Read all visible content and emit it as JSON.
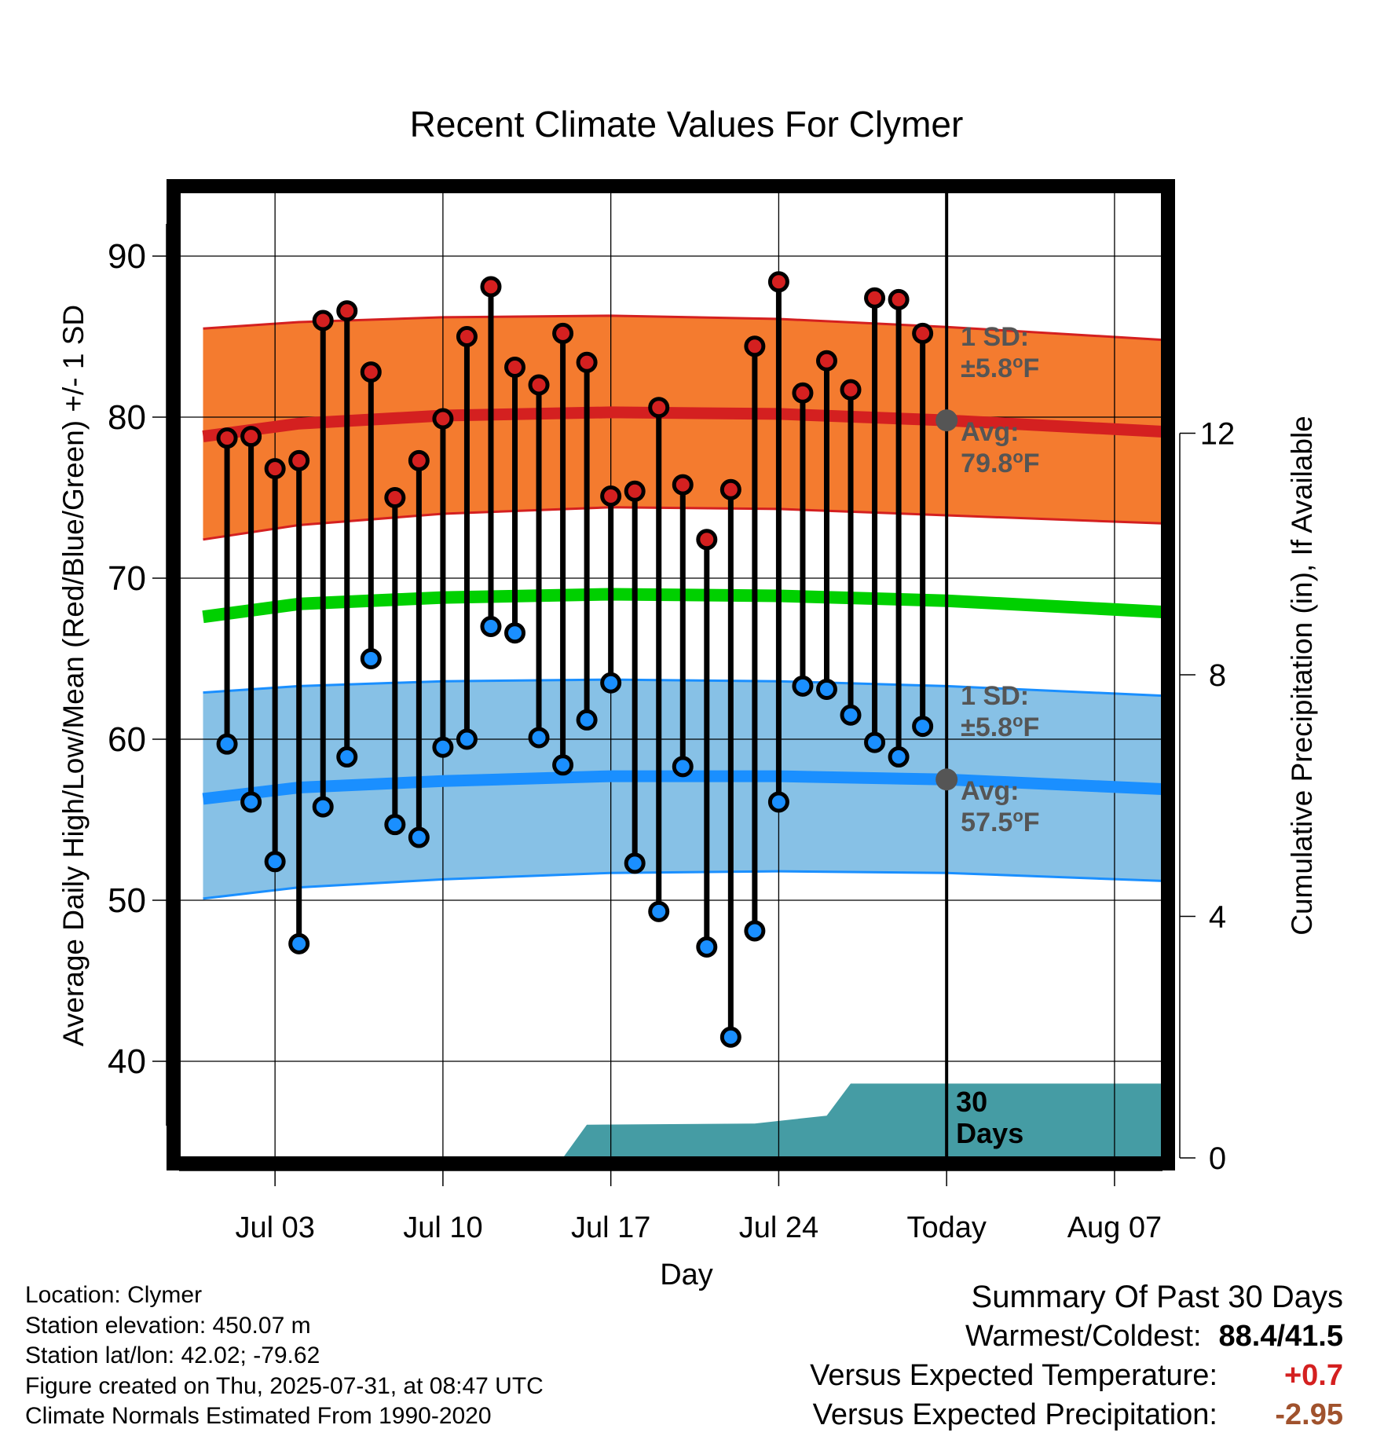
{
  "chart_data": {
    "type": "line",
    "title": "Recent Climate Values For Clymer",
    "xlabel": "Day",
    "ylabel": "Average Daily High/Low/Mean (Red/Blue/Green) +/- 1 SD",
    "y2label": "Cumulative Precipitation (in), If Available",
    "ylim": [
      34,
      94
    ],
    "y2lim": [
      0,
      16
    ],
    "yticks": [
      "40",
      "50",
      "60",
      "70",
      "80",
      "90"
    ],
    "y2ticks": [
      "0",
      "4",
      "8",
      "12"
    ],
    "xticks": [
      "Jul 03",
      "Jul 10",
      "Jul 17",
      "Jul 24",
      "Today",
      "Aug 07"
    ],
    "x_range": [
      "Jun 29",
      "Aug 09"
    ],
    "grid": true,
    "today": "Jul 31",
    "dates": [
      "Jul 01",
      "Jul 02",
      "Jul 03",
      "Jul 04",
      "Jul 05",
      "Jul 06",
      "Jul 07",
      "Jul 08",
      "Jul 09",
      "Jul 10",
      "Jul 11",
      "Jul 12",
      "Jul 13",
      "Jul 14",
      "Jul 15",
      "Jul 16",
      "Jul 17",
      "Jul 18",
      "Jul 19",
      "Jul 20",
      "Jul 21",
      "Jul 22",
      "Jul 23",
      "Jul 24",
      "Jul 25",
      "Jul 26",
      "Jul 27",
      "Jul 28",
      "Jul 29",
      "Jul 30"
    ],
    "series": [
      {
        "name": "High",
        "color": "#d42020",
        "values": [
          78.7,
          78.8,
          76.8,
          77.3,
          86.0,
          86.6,
          82.8,
          75.0,
          77.3,
          79.9,
          85.0,
          88.1,
          83.1,
          82.0,
          85.2,
          83.4,
          75.1,
          75.4,
          80.6,
          75.8,
          72.4,
          75.5,
          84.4,
          88.4,
          81.5,
          83.5,
          81.7,
          87.4,
          87.3,
          85.2
        ]
      },
      {
        "name": "Low",
        "color": "#1a8fff",
        "values": [
          59.7,
          56.1,
          52.4,
          47.3,
          55.8,
          58.9,
          65.0,
          54.7,
          53.9,
          59.5,
          60.0,
          67.0,
          66.6,
          60.1,
          58.4,
          61.2,
          63.5,
          52.3,
          49.3,
          58.3,
          47.1,
          41.5,
          48.1,
          56.1,
          63.3,
          63.1,
          61.5,
          59.8,
          58.9,
          60.8
        ]
      }
    ],
    "normals": {
      "dates": [
        "Jun 30",
        "Jul 04",
        "Jul 10",
        "Jul 17",
        "Jul 24",
        "Jul 31",
        "Aug 09"
      ],
      "avg_high": [
        78.8,
        79.6,
        80.1,
        80.3,
        80.2,
        79.8,
        79.1
      ],
      "high_sd_upper": [
        85.5,
        85.9,
        86.2,
        86.3,
        86.1,
        85.6,
        84.8
      ],
      "high_sd_lower": [
        72.4,
        73.3,
        74.0,
        74.4,
        74.3,
        73.9,
        73.4
      ],
      "avg_mean": [
        67.6,
        68.4,
        68.8,
        69.0,
        68.9,
        68.6,
        67.9
      ],
      "avg_low": [
        56.3,
        57.0,
        57.4,
        57.7,
        57.7,
        57.5,
        56.9
      ],
      "low_sd_upper": [
        62.9,
        63.3,
        63.6,
        63.7,
        63.6,
        63.3,
        62.7
      ],
      "low_sd_lower": [
        50.1,
        50.8,
        51.3,
        51.7,
        51.8,
        51.7,
        51.2
      ]
    },
    "precipitation": {
      "color": "#459ca4",
      "dates": [
        "Jul 15",
        "Jul 16",
        "Jul 23",
        "Jul 26",
        "Jul 27",
        "Aug 09"
      ],
      "values": [
        0.0,
        0.55,
        0.57,
        0.7,
        1.23,
        1.23
      ]
    },
    "annotations": {
      "high_sd": "1 SD:",
      "high_sd_value": "±5.8°F",
      "high_avg": "Avg:",
      "high_avg_value": "79.8°F",
      "low_sd": "1 SD:",
      "low_sd_value": "±5.8°F",
      "low_avg": "Avg:",
      "low_avg_value": "57.5°F",
      "today_avg_high": 79.8,
      "today_avg_low": 57.5,
      "days_label_1": "30",
      "days_label_2": "Days"
    }
  },
  "footer": {
    "location": "Location: Clymer",
    "elevation": "Station elevation: 450.07 m",
    "latlon": "Station lat/lon: 42.02; -79.62",
    "created": "Figure created on Thu, 2025-07-31, at 08:47 UTC",
    "normals": "Climate Normals Estimated From 1990-2020"
  },
  "summary": {
    "title": "Summary Of Past 30 Days",
    "warm_cold_label": "Warmest/Coldest:",
    "warm_cold_value": "88.4/41.5",
    "temp_label": "Versus Expected Temperature:",
    "temp_value": "+0.7",
    "temp_color": "#d42020",
    "precip_label": "Versus Expected Precipitation:",
    "precip_value": "-2.95",
    "precip_color": "#a0522d"
  }
}
